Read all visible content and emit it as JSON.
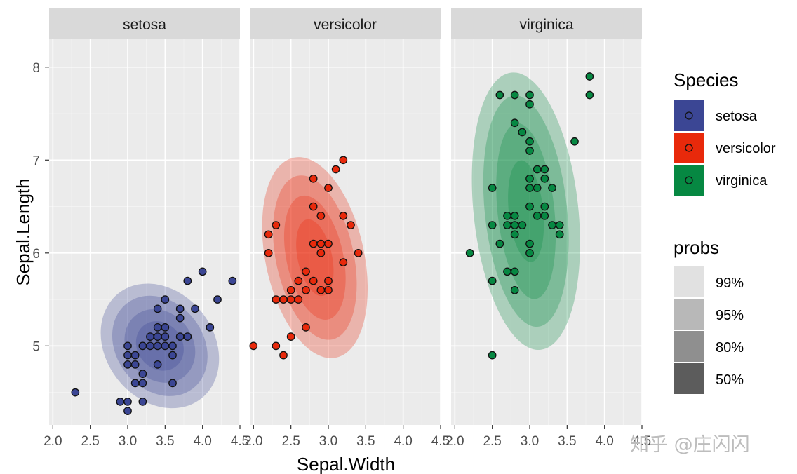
{
  "chart_data": {
    "type": "scatter",
    "subtype": "faceted scatter with 2D density contours (highest density regions)",
    "xlabel": "Sepal.Width",
    "ylabel": "Sepal.Length",
    "xlim": [
      1.95,
      4.5
    ],
    "ylim": [
      4.15,
      8.3
    ],
    "x_ticks": [
      2.0,
      2.5,
      3.0,
      3.5,
      4.0,
      4.5
    ],
    "x_tick_labels": [
      "2.0",
      "2.5",
      "3.0",
      "3.5",
      "4.0",
      "4.5"
    ],
    "y_ticks": [
      5,
      6,
      7,
      8
    ],
    "y_tick_labels": [
      "5",
      "6",
      "7",
      "8"
    ],
    "grid": true,
    "facets": [
      {
        "name": "setosa",
        "color": "#3b4694",
        "density_center": [
          3.43,
          5.0
        ],
        "density_radii": {
          "50": [
            0.3,
            0.28
          ],
          "80": [
            0.44,
            0.42
          ],
          "95": [
            0.58,
            0.58
          ],
          "99": [
            0.72,
            0.72
          ]
        },
        "density_tilt": -38,
        "points": [
          [
            2.3,
            4.5
          ],
          [
            2.9,
            4.4
          ],
          [
            3.0,
            4.3
          ],
          [
            3.0,
            4.4
          ],
          [
            3.0,
            4.8
          ],
          [
            3.0,
            4.9
          ],
          [
            3.0,
            5.0
          ],
          [
            3.1,
            4.6
          ],
          [
            3.1,
            4.8
          ],
          [
            3.1,
            4.9
          ],
          [
            3.2,
            4.4
          ],
          [
            3.2,
            4.6
          ],
          [
            3.2,
            4.7
          ],
          [
            3.2,
            5.0
          ],
          [
            3.3,
            5.0
          ],
          [
            3.3,
            5.1
          ],
          [
            3.4,
            4.8
          ],
          [
            3.4,
            5.0
          ],
          [
            3.4,
            5.1
          ],
          [
            3.4,
            5.2
          ],
          [
            3.4,
            5.4
          ],
          [
            3.5,
            5.0
          ],
          [
            3.5,
            5.1
          ],
          [
            3.5,
            5.2
          ],
          [
            3.5,
            5.5
          ],
          [
            3.6,
            4.6
          ],
          [
            3.6,
            4.9
          ],
          [
            3.6,
            5.0
          ],
          [
            3.7,
            5.1
          ],
          [
            3.7,
            5.3
          ],
          [
            3.7,
            5.4
          ],
          [
            3.8,
            5.1
          ],
          [
            3.8,
            5.7
          ],
          [
            3.9,
            5.4
          ],
          [
            4.0,
            5.8
          ],
          [
            4.1,
            5.2
          ],
          [
            4.2,
            5.5
          ],
          [
            4.4,
            5.7
          ]
        ]
      },
      {
        "name": "versicolor",
        "color": "#e8290b",
        "density_center": [
          2.82,
          5.95
        ],
        "density_radii": {
          "50": [
            0.23,
            0.42
          ],
          "80": [
            0.38,
            0.68
          ],
          "95": [
            0.52,
            0.9
          ],
          "99": [
            0.66,
            1.1
          ]
        },
        "density_tilt": -12,
        "points": [
          [
            2.0,
            5.0
          ],
          [
            2.2,
            6.0
          ],
          [
            2.2,
            6.2
          ],
          [
            2.3,
            5.0
          ],
          [
            2.3,
            5.5
          ],
          [
            2.3,
            6.3
          ],
          [
            2.4,
            4.9
          ],
          [
            2.4,
            5.5
          ],
          [
            2.5,
            5.1
          ],
          [
            2.5,
            5.5
          ],
          [
            2.5,
            5.6
          ],
          [
            2.6,
            5.5
          ],
          [
            2.6,
            5.7
          ],
          [
            2.7,
            5.2
          ],
          [
            2.7,
            5.6
          ],
          [
            2.7,
            5.8
          ],
          [
            2.8,
            5.7
          ],
          [
            2.8,
            6.1
          ],
          [
            2.8,
            6.5
          ],
          [
            2.8,
            6.8
          ],
          [
            2.9,
            5.6
          ],
          [
            2.9,
            6.0
          ],
          [
            2.9,
            6.1
          ],
          [
            2.9,
            6.4
          ],
          [
            3.0,
            5.6
          ],
          [
            3.0,
            5.7
          ],
          [
            3.0,
            6.1
          ],
          [
            3.0,
            6.7
          ],
          [
            3.1,
            6.9
          ],
          [
            3.2,
            5.9
          ],
          [
            3.2,
            6.4
          ],
          [
            3.2,
            7.0
          ],
          [
            3.3,
            6.3
          ],
          [
            3.4,
            6.0
          ]
        ]
      },
      {
        "name": "virginica",
        "color": "#068842",
        "density_center": [
          2.95,
          6.45
        ],
        "density_radii": {
          "50": [
            0.23,
            0.55
          ],
          "80": [
            0.38,
            0.95
          ],
          "95": [
            0.55,
            1.25
          ],
          "99": [
            0.7,
            1.5
          ]
        },
        "density_tilt": -6,
        "points": [
          [
            2.2,
            6.0
          ],
          [
            2.5,
            4.9
          ],
          [
            2.5,
            5.7
          ],
          [
            2.5,
            6.3
          ],
          [
            2.5,
            6.7
          ],
          [
            2.6,
            6.1
          ],
          [
            2.6,
            7.7
          ],
          [
            2.7,
            5.8
          ],
          [
            2.7,
            6.3
          ],
          [
            2.7,
            6.4
          ],
          [
            2.8,
            5.6
          ],
          [
            2.8,
            5.8
          ],
          [
            2.8,
            6.2
          ],
          [
            2.8,
            6.3
          ],
          [
            2.8,
            6.4
          ],
          [
            2.8,
            7.4
          ],
          [
            2.8,
            7.7
          ],
          [
            2.9,
            6.3
          ],
          [
            2.9,
            7.3
          ],
          [
            3.0,
            6.0
          ],
          [
            3.0,
            6.1
          ],
          [
            3.0,
            6.5
          ],
          [
            3.0,
            6.7
          ],
          [
            3.0,
            6.8
          ],
          [
            3.0,
            7.1
          ],
          [
            3.0,
            7.2
          ],
          [
            3.0,
            7.6
          ],
          [
            3.0,
            7.7
          ],
          [
            3.1,
            6.4
          ],
          [
            3.1,
            6.7
          ],
          [
            3.1,
            6.9
          ],
          [
            3.2,
            6.4
          ],
          [
            3.2,
            6.5
          ],
          [
            3.2,
            6.8
          ],
          [
            3.2,
            6.9
          ],
          [
            3.3,
            6.3
          ],
          [
            3.3,
            6.7
          ],
          [
            3.4,
            6.2
          ],
          [
            3.4,
            6.3
          ],
          [
            3.6,
            7.2
          ],
          [
            3.8,
            7.7
          ],
          [
            3.8,
            7.9
          ]
        ]
      }
    ],
    "legend": {
      "species": {
        "title": "Species",
        "items": [
          {
            "label": "setosa",
            "color": "#3b4694"
          },
          {
            "label": "versicolor",
            "color": "#e8290b"
          },
          {
            "label": "virginica",
            "color": "#068842"
          }
        ]
      },
      "probs": {
        "title": "probs",
        "items": [
          {
            "label": "99%",
            "alpha": 0.15
          },
          {
            "label": "95%",
            "alpha": 0.35
          },
          {
            "label": "80%",
            "alpha": 0.55
          },
          {
            "label": "50%",
            "alpha": 0.8
          }
        ]
      }
    }
  },
  "watermark": "知乎 @庄闪闪"
}
